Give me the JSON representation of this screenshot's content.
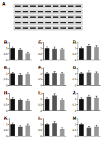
{
  "panel_a": {
    "label": "A"
  },
  "chart_data": [
    {
      "type": "bar",
      "title": "B",
      "categories": [
        null,
        null,
        null
      ],
      "values": [
        1,
        0.85,
        0.55
      ],
      "errors": [
        0.1,
        0.12,
        0.1
      ],
      "colors": [
        "#111111",
        "#555555",
        "#999999"
      ],
      "ylim": [
        0,
        1.5
      ],
      "yticks": [
        0,
        0.5,
        1,
        1.5
      ],
      "tick_labels": "y"
    },
    {
      "type": "bar",
      "title": "C",
      "categories": [
        null,
        null,
        null
      ],
      "values": [
        1,
        0.95,
        0.9
      ],
      "errors": [
        0.12,
        0.15,
        0.1
      ],
      "colors": [
        "#111111",
        "#555555",
        "#999999"
      ],
      "ylim": [
        0,
        1.5
      ],
      "yticks": [
        0,
        0.5,
        1,
        1.5
      ],
      "tick_labels": "y"
    },
    {
      "type": "bar",
      "title": "D",
      "categories": [
        null,
        null,
        null
      ],
      "values": [
        1,
        1.2,
        1.1
      ],
      "errors": [
        0.1,
        0.15,
        0.12
      ],
      "colors": [
        "#111111",
        "#555555",
        "#999999"
      ],
      "ylim": [
        0,
        1.5
      ],
      "yticks": [
        0,
        0.5,
        1,
        1.5
      ],
      "tick_labels": "y"
    },
    {
      "type": "bar",
      "title": "E",
      "categories": [
        null,
        null,
        null
      ],
      "values": [
        1,
        0.9,
        0.95
      ],
      "errors": [
        0.1,
        0.1,
        0.12
      ],
      "colors": [
        "#111111",
        "#555555",
        "#999999"
      ],
      "ylim": [
        0,
        1.5
      ],
      "yticks": [
        0,
        0.5,
        1,
        1.5
      ],
      "tick_labels": "y"
    },
    {
      "type": "bar",
      "title": "F",
      "categories": [
        null,
        null,
        null
      ],
      "values": [
        1,
        1.05,
        1
      ],
      "errors": [
        0.1,
        0.12,
        0.1
      ],
      "colors": [
        "#111111",
        "#555555",
        "#999999"
      ],
      "ylim": [
        0,
        1.5
      ],
      "yticks": [
        0,
        0.5,
        1,
        1.5
      ],
      "tick_labels": "y"
    },
    {
      "type": "bar",
      "title": "G",
      "categories": [
        null,
        null,
        null
      ],
      "values": [
        1,
        1.1,
        1.05
      ],
      "errors": [
        0.1,
        0.15,
        0.1
      ],
      "colors": [
        "#111111",
        "#555555",
        "#999999"
      ],
      "ylim": [
        0,
        1.5
      ],
      "yticks": [
        0,
        0.5,
        1,
        1.5
      ],
      "tick_labels": "y"
    },
    {
      "type": "bar",
      "title": "H",
      "categories": [
        null,
        null,
        null
      ],
      "values": [
        1,
        0.9,
        0.85
      ],
      "errors": [
        0.12,
        0.1,
        0.1
      ],
      "colors": [
        "#111111",
        "#555555",
        "#999999"
      ],
      "ylim": [
        0,
        1.5
      ],
      "yticks": [
        0,
        0.5,
        1,
        1.5
      ],
      "tick_labels": "y"
    },
    {
      "type": "bar",
      "title": "I",
      "categories": [
        null,
        null,
        null
      ],
      "values": [
        1,
        1.3,
        0.9
      ],
      "errors": [
        0.1,
        0.15,
        0.12
      ],
      "colors": [
        "#111111",
        "#555555",
        "#999999"
      ],
      "ylim": [
        0,
        1.5
      ],
      "yticks": [
        0,
        0.5,
        1,
        1.5
      ],
      "tick_labels": "y"
    },
    {
      "type": "bar",
      "title": "J",
      "categories": [
        null,
        null,
        null
      ],
      "values": [
        1,
        1.2,
        1.1
      ],
      "errors": [
        0.1,
        0.12,
        0.15
      ],
      "colors": [
        "#111111",
        "#555555",
        "#999999"
      ],
      "ylim": [
        0,
        1.5
      ],
      "yticks": [
        0,
        0.5,
        1,
        1.5
      ],
      "tick_labels": "y"
    },
    {
      "type": "bar",
      "title": "K",
      "categories": [
        null,
        null,
        null
      ],
      "values": [
        1,
        0.8,
        0.9
      ],
      "errors": [
        0.12,
        0.1,
        0.12
      ],
      "colors": [
        "#111111",
        "#555555",
        "#999999"
      ],
      "ylim": [
        0,
        1.5
      ],
      "yticks": [
        0,
        0.5,
        1,
        1.5
      ],
      "tick_labels": "y"
    },
    {
      "type": "bar",
      "title": "L",
      "categories": [
        null,
        null,
        null
      ],
      "values": [
        1,
        1.1,
        0.6
      ],
      "errors": [
        0.1,
        0.15,
        0.1
      ],
      "colors": [
        "#111111",
        "#555555",
        "#999999"
      ],
      "ylim": [
        0,
        1.5
      ],
      "yticks": [
        0,
        0.5,
        1,
        1.5
      ],
      "tick_labels": "y"
    },
    {
      "type": "bar",
      "title": "M",
      "categories": [
        null,
        null,
        null
      ],
      "values": [
        1,
        0.7,
        0.8
      ],
      "errors": [
        0.1,
        0.12,
        0.12
      ],
      "colors": [
        "#111111",
        "#555555",
        "#999999"
      ],
      "ylim": [
        0,
        1.5
      ],
      "yticks": [
        0,
        0.5,
        1,
        1.5
      ],
      "tick_labels": "y"
    }
  ]
}
